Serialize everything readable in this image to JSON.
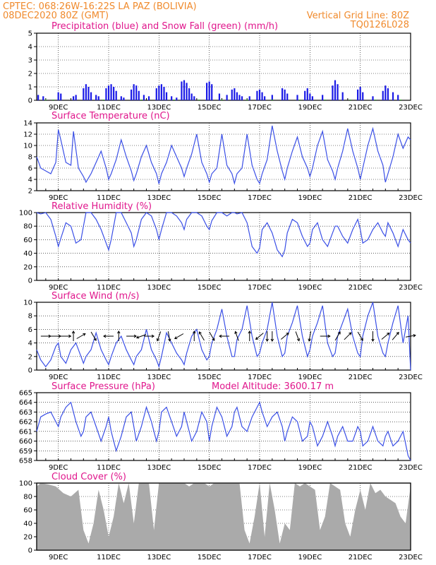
{
  "header": {
    "line1_left": "CPTEC:   068:26W-16:22S   LA PAZ (BOLIVIA)",
    "line2_left": "08DEC2020 80Z (GMT)",
    "line2_right": "Vertical Grid Line: 80Z",
    "line3_right": "TQ0126L028"
  },
  "x_axis": {
    "start_day": 8.14,
    "end_day": 23.0,
    "tick_labels": [
      "9DEC",
      "11DEC",
      "13DEC",
      "15DEC",
      "17DEC",
      "19DEC",
      "21DEC",
      "23DEC"
    ],
    "tick_days": [
      9,
      11,
      13,
      15,
      17,
      19,
      21,
      23
    ]
  },
  "colors": {
    "header": "#f08a2c",
    "title": "#e0168c",
    "precip": "#1a1ae6",
    "snow": "#1ab01a",
    "line": "#3a4fe6",
    "cloud": "#aaaaaa",
    "arrow": "#000000"
  },
  "panels": {
    "precip": {
      "title": "Precipitation (blue) and Snow Fall (green) (mm/h)"
    },
    "temp": {
      "title": "Surface Temperature (nC)"
    },
    "rh": {
      "title": "Relative Humidity (%)"
    },
    "wind": {
      "title": "Surface Wind (m/s)"
    },
    "pres": {
      "title": "Surface Pressure (hPa)",
      "extra": "Model Altitude: 3600.17 m"
    },
    "cloud": {
      "title": "Cloud Cover (%)"
    }
  },
  "chart_data": [
    {
      "id": "precip",
      "type": "bar",
      "ylim": [
        0,
        5
      ],
      "yticks": [
        0,
        1,
        2,
        3,
        4,
        5
      ],
      "series": [
        {
          "name": "Precipitation",
          "color": "#1a1ae6",
          "x": [
            8.2,
            8.4,
            9.0,
            9.1,
            9.6,
            9.7,
            10.0,
            10.1,
            10.2,
            10.3,
            10.5,
            10.6,
            10.9,
            11.0,
            11.1,
            11.2,
            11.3,
            11.5,
            11.6,
            11.9,
            12.0,
            12.1,
            12.2,
            12.4,
            12.6,
            12.9,
            13.0,
            13.1,
            13.2,
            13.3,
            13.5,
            13.7,
            13.9,
            14.0,
            14.1,
            14.2,
            14.3,
            14.4,
            14.9,
            15.0,
            15.1,
            15.4,
            15.7,
            15.9,
            16.0,
            16.1,
            16.2,
            16.3,
            16.6,
            16.9,
            17.0,
            17.1,
            17.2,
            17.5,
            17.9,
            18.0,
            18.1,
            18.5,
            18.8,
            18.9,
            19.0,
            19.1,
            19.5,
            19.9,
            20.0,
            20.1,
            20.3,
            20.9,
            21.0,
            21.1,
            21.5,
            21.9,
            22.0,
            22.1,
            22.3,
            22.5
          ],
          "y": [
            0.4,
            0.3,
            0.6,
            0.5,
            0.3,
            0.4,
            0.9,
            1.2,
            1.0,
            0.6,
            0.4,
            0.3,
            0.9,
            1.1,
            1.2,
            1.0,
            0.7,
            0.3,
            0.2,
            0.8,
            1.2,
            1.1,
            0.7,
            0.4,
            0.3,
            0.9,
            1.1,
            1.2,
            1.0,
            0.6,
            0.3,
            0.2,
            1.4,
            1.5,
            1.3,
            0.9,
            0.5,
            0.3,
            1.3,
            1.4,
            1.2,
            0.5,
            0.4,
            0.8,
            0.9,
            0.6,
            0.4,
            0.3,
            0.3,
            0.7,
            0.8,
            0.6,
            0.3,
            0.4,
            0.9,
            0.8,
            0.5,
            0.4,
            0.7,
            0.9,
            0.5,
            0.3,
            0.4,
            1.1,
            1.5,
            1.2,
            0.6,
            0.8,
            1.0,
            0.6,
            0.3,
            0.7,
            1.1,
            0.9,
            0.6,
            0.4
          ]
        },
        {
          "name": "Snow Fall",
          "color": "#1ab01a",
          "x": [
            8.5,
            8.8,
            10.8,
            12.3,
            13.6,
            14.6,
            15.5,
            16.5,
            17.5,
            18.6,
            19.6,
            20.6,
            21.6,
            22.6
          ],
          "y": [
            0.05,
            0.05,
            0.05,
            0.05,
            0.05,
            0.05,
            0.05,
            0.05,
            0.05,
            0.05,
            0.05,
            0.05,
            0.05,
            0.05
          ]
        }
      ]
    },
    {
      "id": "temp",
      "type": "line",
      "ylim": [
        2,
        14
      ],
      "yticks": [
        2,
        4,
        6,
        8,
        10,
        12,
        14
      ],
      "x": [
        8.14,
        8.3,
        8.5,
        8.7,
        8.9,
        9.0,
        9.1,
        9.3,
        9.5,
        9.6,
        9.8,
        10.0,
        10.1,
        10.3,
        10.5,
        10.7,
        10.9,
        11.0,
        11.1,
        11.3,
        11.5,
        11.7,
        11.9,
        12.0,
        12.1,
        12.3,
        12.5,
        12.7,
        12.9,
        13.0,
        13.1,
        13.3,
        13.5,
        13.7,
        13.9,
        14.0,
        14.1,
        14.3,
        14.5,
        14.7,
        14.9,
        15.0,
        15.1,
        15.3,
        15.5,
        15.7,
        15.9,
        16.0,
        16.1,
        16.3,
        16.5,
        16.7,
        16.9,
        17.0,
        17.1,
        17.3,
        17.5,
        17.7,
        17.9,
        18.0,
        18.1,
        18.3,
        18.5,
        18.7,
        18.9,
        19.0,
        19.1,
        19.3,
        19.5,
        19.7,
        19.9,
        20.0,
        20.1,
        20.3,
        20.5,
        20.7,
        20.9,
        21.0,
        21.1,
        21.3,
        21.5,
        21.7,
        21.9,
        22.0,
        22.1,
        22.3,
        22.5,
        22.7,
        22.9,
        23.0
      ],
      "y": [
        8,
        6,
        5.5,
        5,
        7,
        12.8,
        11,
        7,
        6.5,
        12.5,
        6,
        4.5,
        3.5,
        5,
        7,
        9,
        6,
        4,
        5,
        7.5,
        11,
        8,
        5.5,
        3.8,
        5,
        8,
        10,
        7,
        5,
        3.2,
        5,
        7,
        10,
        8,
        6,
        4.5,
        6,
        8.5,
        12,
        7,
        5,
        3.5,
        5,
        6,
        12,
        6.5,
        5,
        3.3,
        5,
        6,
        12,
        6.5,
        4,
        3.3,
        5,
        7.5,
        13.5,
        9,
        5.5,
        4,
        6,
        9,
        11.5,
        8,
        6,
        4.5,
        6,
        10,
        12.5,
        7.5,
        5.5,
        4,
        6,
        9,
        13,
        9,
        6,
        4,
        6,
        10,
        13,
        9,
        6.5,
        3.5,
        5,
        8,
        12,
        9.5,
        11.5,
        11
      ]
    },
    {
      "id": "rh",
      "type": "line",
      "ylim": [
        0,
        100
      ],
      "yticks": [
        0,
        20,
        40,
        60,
        80,
        100
      ],
      "x": [
        8.14,
        8.3,
        8.5,
        8.7,
        8.9,
        9.0,
        9.1,
        9.3,
        9.5,
        9.7,
        9.9,
        10.0,
        10.1,
        10.3,
        10.5,
        10.7,
        10.9,
        11.0,
        11.1,
        11.3,
        11.5,
        11.7,
        11.9,
        12.0,
        12.1,
        12.3,
        12.5,
        12.7,
        12.9,
        13.0,
        13.1,
        13.3,
        13.5,
        13.7,
        13.9,
        14.0,
        14.1,
        14.3,
        14.5,
        14.7,
        14.9,
        15.0,
        15.1,
        15.3,
        15.5,
        15.7,
        15.9,
        16.0,
        16.1,
        16.3,
        16.5,
        16.7,
        16.9,
        17.0,
        17.1,
        17.3,
        17.5,
        17.7,
        17.9,
        18.0,
        18.1,
        18.3,
        18.5,
        18.7,
        18.9,
        19.0,
        19.1,
        19.3,
        19.5,
        19.7,
        19.9,
        20.0,
        20.1,
        20.3,
        20.5,
        20.7,
        20.9,
        21.0,
        21.1,
        21.3,
        21.5,
        21.7,
        21.9,
        22.0,
        22.1,
        22.3,
        22.5,
        22.7,
        22.9,
        23.0
      ],
      "y": [
        100,
        98,
        100,
        90,
        65,
        50,
        62,
        85,
        80,
        55,
        60,
        80,
        100,
        100,
        90,
        75,
        55,
        45,
        60,
        100,
        100,
        85,
        70,
        50,
        60,
        90,
        100,
        95,
        75,
        60,
        75,
        100,
        100,
        95,
        85,
        75,
        90,
        100,
        100,
        95,
        80,
        75,
        88,
        100,
        100,
        95,
        100,
        100,
        98,
        100,
        85,
        50,
        40,
        48,
        75,
        85,
        70,
        45,
        35,
        45,
        70,
        90,
        85,
        65,
        50,
        55,
        75,
        85,
        60,
        50,
        70,
        80,
        80,
        65,
        55,
        75,
        90,
        75,
        55,
        60,
        75,
        85,
        70,
        65,
        85,
        70,
        50,
        75,
        60,
        55
      ]
    },
    {
      "id": "wind",
      "type": "line",
      "ylim": [
        0,
        10
      ],
      "yticks": [
        0,
        2,
        4,
        6,
        8,
        10
      ],
      "x": [
        8.14,
        8.3,
        8.5,
        8.7,
        8.9,
        9.0,
        9.1,
        9.3,
        9.5,
        9.7,
        9.9,
        10.0,
        10.1,
        10.3,
        10.5,
        10.7,
        10.9,
        11.0,
        11.1,
        11.3,
        11.5,
        11.7,
        11.9,
        12.0,
        12.1,
        12.3,
        12.5,
        12.7,
        12.9,
        13.0,
        13.1,
        13.3,
        13.5,
        13.7,
        13.9,
        14.0,
        14.1,
        14.3,
        14.5,
        14.7,
        14.9,
        15.0,
        15.1,
        15.3,
        15.5,
        15.7,
        15.9,
        16.0,
        16.1,
        16.3,
        16.5,
        16.7,
        16.9,
        17.0,
        17.1,
        17.3,
        17.5,
        17.7,
        17.9,
        18.0,
        18.1,
        18.3,
        18.5,
        18.7,
        18.9,
        19.0,
        19.1,
        19.3,
        19.5,
        19.7,
        19.9,
        20.0,
        20.1,
        20.3,
        20.5,
        20.7,
        20.9,
        21.0,
        21.1,
        21.3,
        21.5,
        21.7,
        21.9,
        22.0,
        22.1,
        22.3,
        22.5,
        22.7,
        22.9,
        23.0
      ],
      "y": [
        3,
        1.5,
        0.5,
        1.5,
        3.5,
        4,
        2,
        1,
        3,
        4,
        2,
        1,
        2,
        3,
        5.5,
        3,
        1.5,
        0.8,
        2,
        4,
        5,
        3,
        1.5,
        0.8,
        2,
        3,
        6,
        3,
        1.5,
        0.5,
        2,
        5.5,
        4,
        2.5,
        1.5,
        0.8,
        2.5,
        5,
        6,
        3,
        1.5,
        2,
        4,
        6,
        9,
        5,
        2,
        2,
        4.5,
        6,
        9.5,
        5,
        2,
        2.5,
        4,
        6,
        10,
        5,
        2,
        2.5,
        5,
        7,
        9.5,
        5,
        2,
        3,
        5,
        7,
        9.5,
        4,
        2,
        2.5,
        5,
        7,
        9,
        5,
        2.5,
        2,
        5,
        8,
        10,
        5,
        2.5,
        2,
        4,
        7,
        9.5,
        4,
        8,
        0
      ]
    },
    {
      "id": "pres",
      "type": "line",
      "ylim": [
        658,
        665
      ],
      "yticks": [
        658,
        659,
        660,
        661,
        662,
        663,
        664,
        665
      ],
      "x": [
        8.14,
        8.3,
        8.5,
        8.7,
        8.9,
        9.0,
        9.1,
        9.3,
        9.5,
        9.7,
        9.9,
        10.0,
        10.1,
        10.3,
        10.5,
        10.7,
        10.9,
        11.0,
        11.1,
        11.3,
        11.5,
        11.7,
        11.9,
        12.0,
        12.1,
        12.3,
        12.5,
        12.7,
        12.9,
        13.0,
        13.1,
        13.3,
        13.5,
        13.7,
        13.9,
        14.0,
        14.1,
        14.3,
        14.5,
        14.7,
        14.9,
        15.0,
        15.1,
        15.3,
        15.5,
        15.7,
        15.9,
        16.0,
        16.1,
        16.3,
        16.5,
        16.7,
        16.9,
        17.0,
        17.1,
        17.3,
        17.5,
        17.7,
        17.9,
        18.0,
        18.1,
        18.3,
        18.5,
        18.7,
        18.9,
        19.0,
        19.1,
        19.3,
        19.5,
        19.7,
        19.9,
        20.0,
        20.1,
        20.3,
        20.5,
        20.7,
        20.9,
        21.0,
        21.1,
        21.3,
        21.5,
        21.7,
        21.9,
        22.0,
        22.1,
        22.3,
        22.5,
        22.7,
        22.9,
        23.0
      ],
      "y": [
        661,
        662.5,
        662.8,
        663,
        662,
        661.5,
        662.5,
        663.5,
        664,
        662,
        660.5,
        661,
        662.5,
        663,
        661.5,
        660,
        661.5,
        662.5,
        661,
        659,
        660.5,
        662.5,
        663,
        661.5,
        660,
        661.5,
        663.5,
        662,
        660,
        661,
        663,
        663.5,
        662,
        660.5,
        661.5,
        663,
        662,
        660,
        661,
        663,
        662,
        660,
        661.5,
        663.5,
        662.5,
        660.5,
        661.5,
        663,
        663.5,
        661.5,
        661,
        662.5,
        663.5,
        664,
        663,
        661.5,
        662.5,
        663,
        661.5,
        660,
        661,
        662.5,
        662,
        660,
        660.5,
        662,
        661.5,
        659.5,
        660.5,
        662,
        660.5,
        659.5,
        660.5,
        661.5,
        660,
        660,
        661.5,
        661,
        659.5,
        660,
        661.5,
        660,
        659.5,
        660.5,
        661,
        659.5,
        660,
        661,
        658.5,
        658
      ]
    },
    {
      "id": "cloud",
      "type": "area",
      "ylim": [
        0,
        100
      ],
      "yticks": [
        0,
        20,
        40,
        60,
        80,
        100
      ],
      "x": [
        8.14,
        8.3,
        8.6,
        8.9,
        9.2,
        9.5,
        9.8,
        10.0,
        10.2,
        10.4,
        10.6,
        10.8,
        11.0,
        11.2,
        11.4,
        11.6,
        11.8,
        12.0,
        12.2,
        12.4,
        12.6,
        12.8,
        13.0,
        13.2,
        13.4,
        13.6,
        13.8,
        14.0,
        14.2,
        14.4,
        14.6,
        14.8,
        15.0,
        15.2,
        15.4,
        15.6,
        15.8,
        16.0,
        16.2,
        16.4,
        16.6,
        16.8,
        17.0,
        17.2,
        17.4,
        17.6,
        17.8,
        18.0,
        18.2,
        18.4,
        18.6,
        18.8,
        19.0,
        19.2,
        19.4,
        19.6,
        19.8,
        20.0,
        20.2,
        20.4,
        20.6,
        20.8,
        21.0,
        21.2,
        21.4,
        21.6,
        21.8,
        22.0,
        22.2,
        22.4,
        22.6,
        22.8,
        23.0
      ],
      "y": [
        95,
        100,
        98,
        95,
        85,
        80,
        90,
        30,
        10,
        40,
        90,
        60,
        20,
        50,
        100,
        70,
        100,
        40,
        100,
        100,
        100,
        30,
        100,
        100,
        100,
        100,
        100,
        100,
        95,
        100,
        100,
        100,
        95,
        100,
        100,
        100,
        100,
        100,
        100,
        30,
        10,
        50,
        100,
        20,
        100,
        60,
        10,
        40,
        30,
        100,
        95,
        100,
        95,
        90,
        30,
        50,
        100,
        95,
        90,
        40,
        20,
        60,
        90,
        60,
        100,
        85,
        90,
        80,
        75,
        70,
        50,
        40,
        95
      ]
    },
    {
      "id": "wind_dir",
      "type": "scatter",
      "ylim": [
        0,
        10
      ],
      "x": [
        8.5,
        8.9,
        9.3,
        9.6,
        9.9,
        10.4,
        11.0,
        11.4,
        11.9,
        12.3,
        12.6,
        13.0,
        13.4,
        13.8,
        14.4,
        14.7,
        15.1,
        15.6,
        16.1,
        16.6,
        17.0,
        17.3,
        17.5,
        18.0,
        18.5,
        19.0,
        19.6,
        20.1,
        20.5,
        21.0,
        21.5,
        22.0,
        22.4,
        23.0
      ],
      "y": [
        5,
        5,
        5,
        5,
        5,
        5,
        5,
        5,
        5,
        5,
        5,
        5,
        5,
        5,
        5,
        5,
        5,
        5,
        5,
        5,
        5,
        5,
        5,
        5,
        5,
        5,
        5,
        5,
        5,
        5,
        5,
        5,
        5,
        5
      ],
      "dir_deg": [
        0,
        0,
        0,
        90,
        30,
        300,
        180,
        90,
        0,
        200,
        0,
        250,
        280,
        210,
        90,
        120,
        300,
        180,
        110,
        90,
        220,
        270,
        270,
        40,
        290,
        260,
        0,
        60,
        45,
        300,
        270,
        40,
        50,
        10
      ]
    }
  ]
}
